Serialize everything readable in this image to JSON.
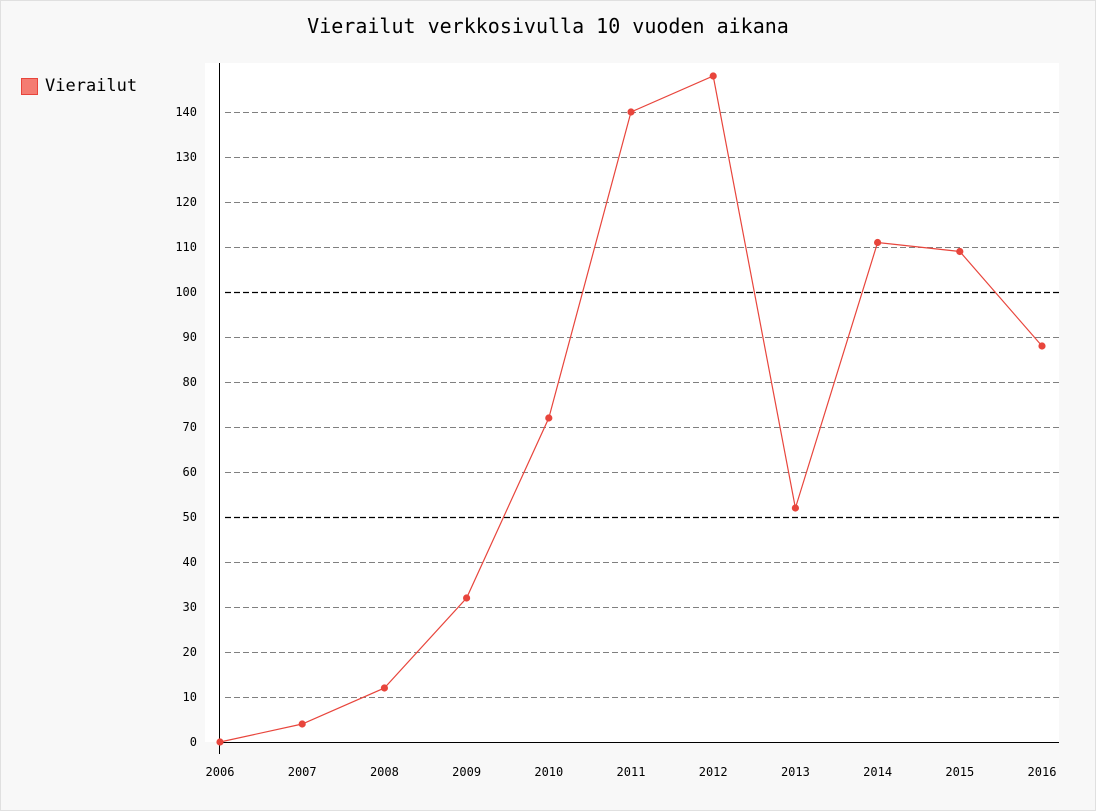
{
  "chart_data": {
    "type": "line",
    "title": "Vierailut verkkosivulla 10 vuoden aikana",
    "xlabel": "",
    "ylabel": "",
    "x": [
      "2006",
      "2007",
      "2008",
      "2009",
      "2010",
      "2011",
      "2012",
      "2013",
      "2014",
      "2015",
      "2016"
    ],
    "series": [
      {
        "name": "Vierailut",
        "color": "#e8453c",
        "values": [
          0,
          4,
          12,
          32,
          72,
          140,
          148,
          52,
          111,
          109,
          88
        ]
      }
    ],
    "ylim": [
      0,
      150
    ],
    "yticks": [
      0,
      10,
      20,
      30,
      40,
      50,
      60,
      70,
      80,
      90,
      100,
      110,
      120,
      130,
      140
    ],
    "ytick_labels": [
      "0",
      "10",
      "20",
      "30",
      "40",
      "50",
      "60",
      "70",
      "80",
      "90",
      "100",
      "110",
      "120",
      "130",
      "140"
    ],
    "major_yticks": [
      50,
      100
    ],
    "grid": true,
    "legend_position": "left"
  },
  "colors": {
    "background": "#f8f8f8",
    "plot_background": "#ffffff",
    "line": "#e8453c",
    "legend_fill": "#f47c72",
    "grid": "#808080",
    "grid_major": "#000000"
  }
}
